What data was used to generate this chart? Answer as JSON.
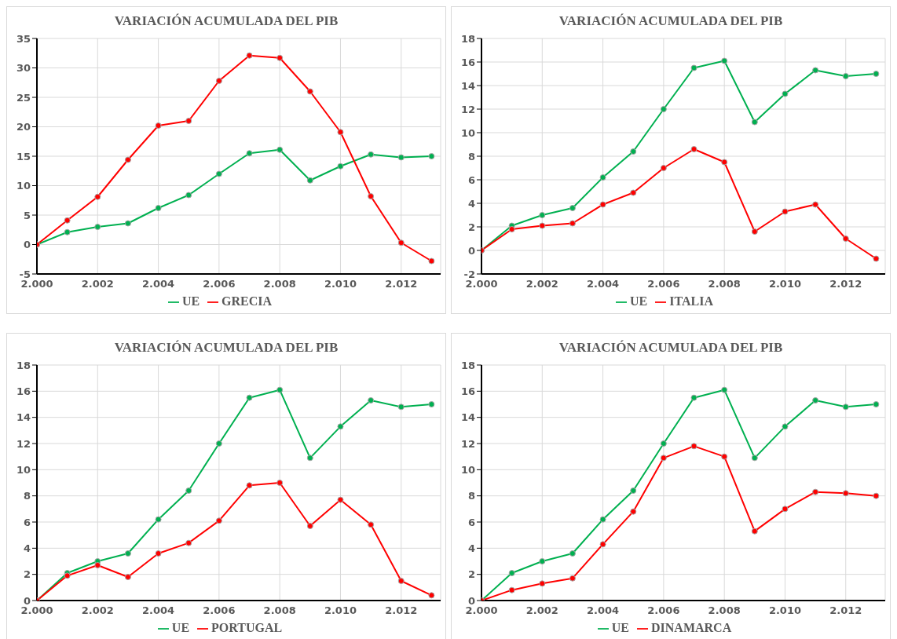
{
  "chart_data": [
    {
      "type": "line",
      "title": "VARIACIÓN ACUMULADA DEL PIB",
      "x": [
        2000,
        2001,
        2002,
        2003,
        2004,
        2005,
        2006,
        2007,
        2008,
        2009,
        2010,
        2011,
        2012,
        2013
      ],
      "xlim": [
        2000,
        2013.3
      ],
      "xticks": [
        {
          "value": 2000,
          "label": "2.000"
        },
        {
          "value": 2002,
          "label": "2.002"
        },
        {
          "value": 2004,
          "label": "2.004"
        },
        {
          "value": 2006,
          "label": "2.006"
        },
        {
          "value": 2008,
          "label": "2.008"
        },
        {
          "value": 2010,
          "label": "2.010"
        },
        {
          "value": 2012,
          "label": "2.012"
        }
      ],
      "ylim": [
        -5,
        35
      ],
      "yticks": [
        -5,
        0,
        5,
        10,
        15,
        20,
        25,
        30,
        35
      ],
      "grid": true,
      "legend": "bottom",
      "marker": "circle",
      "series": [
        {
          "name": "UE",
          "color": "#00b050",
          "values": [
            0,
            2.1,
            3.0,
            3.6,
            6.2,
            8.4,
            12.0,
            15.5,
            16.1,
            10.9,
            13.3,
            15.3,
            14.8,
            15.0
          ]
        },
        {
          "name": "GRECIA",
          "color": "#ff0000",
          "values": [
            0,
            4.1,
            8.1,
            14.4,
            20.2,
            21.0,
            27.8,
            32.1,
            31.7,
            26.0,
            19.1,
            8.2,
            0.3,
            -2.8
          ]
        }
      ]
    },
    {
      "type": "line",
      "title": "VARIACIÓN ACUMULADA DEL PIB",
      "x": [
        2000,
        2001,
        2002,
        2003,
        2004,
        2005,
        2006,
        2007,
        2008,
        2009,
        2010,
        2011,
        2012,
        2013
      ],
      "xlim": [
        2000,
        2013.3
      ],
      "xticks": [
        {
          "value": 2000,
          "label": "2.000"
        },
        {
          "value": 2002,
          "label": "2.002"
        },
        {
          "value": 2004,
          "label": "2.004"
        },
        {
          "value": 2006,
          "label": "2.006"
        },
        {
          "value": 2008,
          "label": "2.008"
        },
        {
          "value": 2010,
          "label": "2.010"
        },
        {
          "value": 2012,
          "label": "2.012"
        }
      ],
      "ylim": [
        -2,
        18
      ],
      "yticks": [
        -2,
        0,
        2,
        4,
        6,
        8,
        10,
        12,
        14,
        16,
        18
      ],
      "grid": true,
      "legend": "bottom",
      "marker": "circle",
      "series": [
        {
          "name": "UE",
          "color": "#00b050",
          "values": [
            0,
            2.1,
            3.0,
            3.6,
            6.2,
            8.4,
            12.0,
            15.5,
            16.1,
            10.9,
            13.3,
            15.3,
            14.8,
            15.0
          ]
        },
        {
          "name": "ITALIA",
          "color": "#ff0000",
          "values": [
            0,
            1.8,
            2.1,
            2.3,
            3.9,
            4.9,
            7.0,
            8.6,
            7.5,
            1.6,
            3.3,
            3.9,
            1.0,
            -0.7
          ]
        }
      ]
    },
    {
      "type": "line",
      "title": "VARIACIÓN ACUMULADA DEL PIB",
      "x": [
        2000,
        2001,
        2002,
        2003,
        2004,
        2005,
        2006,
        2007,
        2008,
        2009,
        2010,
        2011,
        2012,
        2013
      ],
      "xlim": [
        2000,
        2013.3
      ],
      "xticks": [
        {
          "value": 2000,
          "label": "2.000"
        },
        {
          "value": 2002,
          "label": "2.002"
        },
        {
          "value": 2004,
          "label": "2.004"
        },
        {
          "value": 2006,
          "label": "2.006"
        },
        {
          "value": 2008,
          "label": "2.008"
        },
        {
          "value": 2010,
          "label": "2.010"
        },
        {
          "value": 2012,
          "label": "2.012"
        }
      ],
      "ylim": [
        0,
        18
      ],
      "yticks": [
        0,
        2,
        4,
        6,
        8,
        10,
        12,
        14,
        16,
        18
      ],
      "grid": true,
      "legend": "bottom",
      "marker": "circle",
      "series": [
        {
          "name": "UE",
          "color": "#00b050",
          "values": [
            0,
            2.1,
            3.0,
            3.6,
            6.2,
            8.4,
            12.0,
            15.5,
            16.1,
            10.9,
            13.3,
            15.3,
            14.8,
            15.0
          ]
        },
        {
          "name": "PORTUGAL",
          "color": "#ff0000",
          "values": [
            0,
            1.9,
            2.7,
            1.8,
            3.6,
            4.4,
            6.1,
            8.8,
            9.0,
            5.7,
            7.7,
            5.8,
            1.5,
            0.4
          ]
        }
      ]
    },
    {
      "type": "line",
      "title": "VARIACIÓN ACUMULADA DEL PIB",
      "x": [
        2000,
        2001,
        2002,
        2003,
        2004,
        2005,
        2006,
        2007,
        2008,
        2009,
        2010,
        2011,
        2012,
        2013
      ],
      "xlim": [
        2000,
        2013.3
      ],
      "xticks": [
        {
          "value": 2000,
          "label": "2.000"
        },
        {
          "value": 2002,
          "label": "2.002"
        },
        {
          "value": 2004,
          "label": "2.004"
        },
        {
          "value": 2006,
          "label": "2.006"
        },
        {
          "value": 2008,
          "label": "2.008"
        },
        {
          "value": 2010,
          "label": "2.010"
        },
        {
          "value": 2012,
          "label": "2.012"
        }
      ],
      "ylim": [
        0,
        18
      ],
      "yticks": [
        0,
        2,
        4,
        6,
        8,
        10,
        12,
        14,
        16,
        18
      ],
      "grid": true,
      "legend": "bottom",
      "marker": "circle",
      "series": [
        {
          "name": "UE",
          "color": "#00b050",
          "values": [
            0,
            2.1,
            3.0,
            3.6,
            6.2,
            8.4,
            12.0,
            15.5,
            16.1,
            10.9,
            13.3,
            15.3,
            14.8,
            15.0
          ]
        },
        {
          "name": "DINAMARCA",
          "color": "#ff0000",
          "values": [
            0,
            0.8,
            1.3,
            1.7,
            4.3,
            6.8,
            10.9,
            11.8,
            11.0,
            5.3,
            7.0,
            8.3,
            8.2,
            8.0
          ]
        }
      ]
    }
  ]
}
